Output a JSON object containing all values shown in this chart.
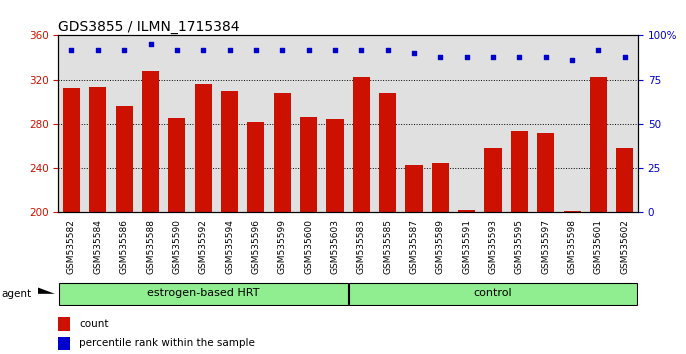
{
  "title": "GDS3855 / ILMN_1715384",
  "samples": [
    "GSM535582",
    "GSM535584",
    "GSM535586",
    "GSM535588",
    "GSM535590",
    "GSM535592",
    "GSM535594",
    "GSM535596",
    "GSM535599",
    "GSM535600",
    "GSM535603",
    "GSM535583",
    "GSM535585",
    "GSM535587",
    "GSM535589",
    "GSM535591",
    "GSM535593",
    "GSM535595",
    "GSM535597",
    "GSM535598",
    "GSM535601",
    "GSM535602"
  ],
  "counts": [
    312,
    313,
    296,
    328,
    285,
    316,
    310,
    282,
    308,
    286,
    284,
    322,
    308,
    243,
    245,
    202,
    258,
    274,
    272,
    201,
    322,
    258
  ],
  "percentile_ranks": [
    92,
    92,
    92,
    95,
    92,
    92,
    92,
    92,
    92,
    92,
    92,
    92,
    92,
    90,
    88,
    88,
    88,
    88,
    88,
    86,
    92,
    88
  ],
  "groups": [
    "estrogen-based HRT",
    "estrogen-based HRT",
    "estrogen-based HRT",
    "estrogen-based HRT",
    "estrogen-based HRT",
    "estrogen-based HRT",
    "estrogen-based HRT",
    "estrogen-based HRT",
    "estrogen-based HRT",
    "estrogen-based HRT",
    "estrogen-based HRT",
    "control",
    "control",
    "control",
    "control",
    "control",
    "control",
    "control",
    "control",
    "control",
    "control",
    "control"
  ],
  "bar_color": "#CC1100",
  "dot_color": "#0000CC",
  "ylim_left": [
    200,
    360
  ],
  "ylim_right": [
    0,
    100
  ],
  "yticks_left": [
    200,
    240,
    280,
    320,
    360
  ],
  "yticks_right": [
    0,
    25,
    50,
    75,
    100
  ],
  "grid_values": [
    240,
    280,
    320
  ],
  "background_color": "#ffffff",
  "bar_bg_color": "#e0e0e0",
  "agent_label": "agent",
  "legend_count": "count",
  "legend_percentile": "percentile rank within the sample",
  "title_fontsize": 10,
  "axis_fontsize": 7.5,
  "tick_fontsize": 6.5
}
